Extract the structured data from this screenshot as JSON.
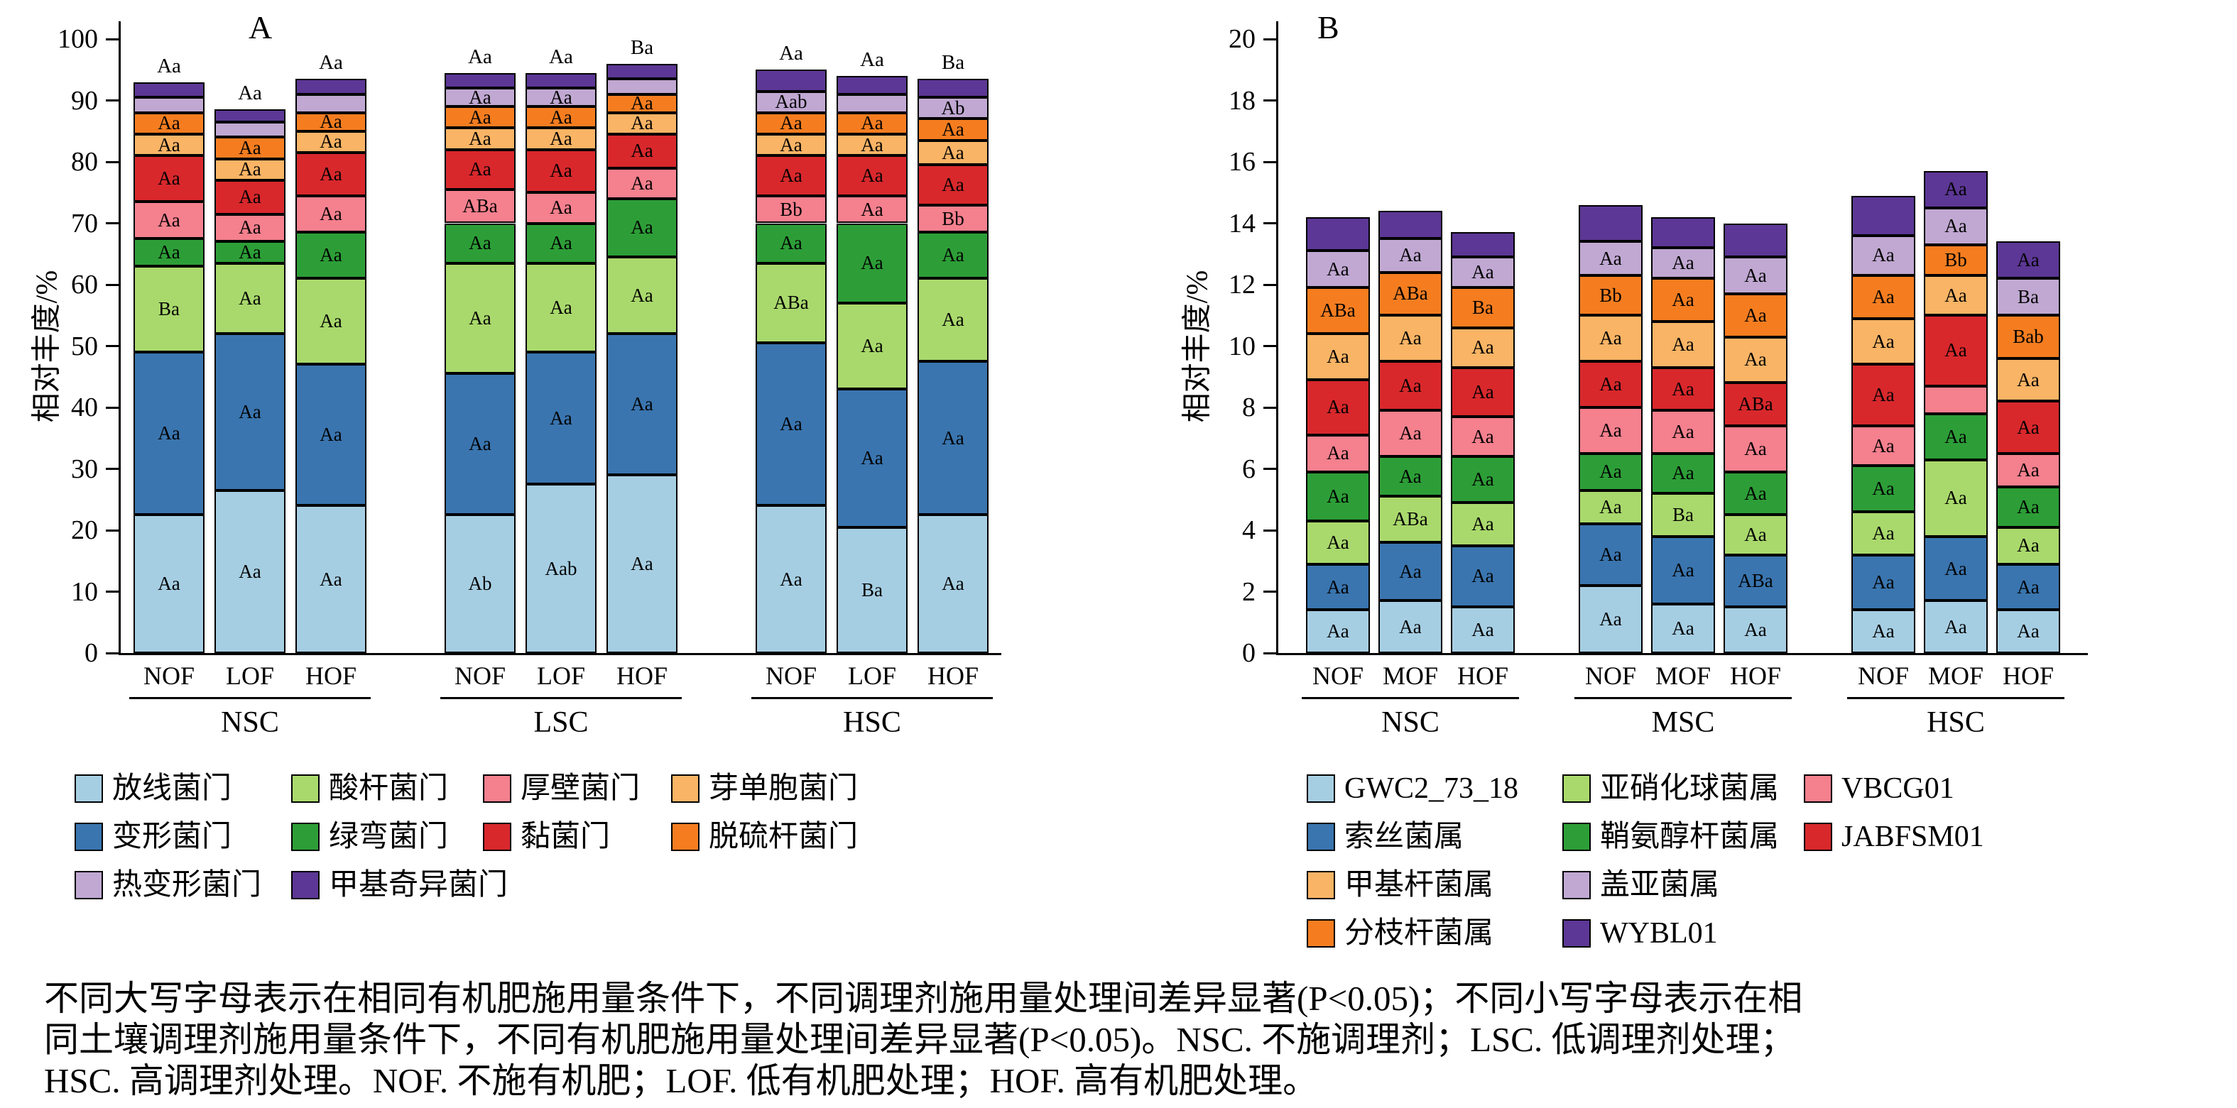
{
  "caption": {
    "lines": [
      "不同大写字母表示在相同有机肥施用量条件下，不同调理剂施用量处理间差异显著(P<0.05)；不同小写字母表示在相",
      "同土壤调理剂施用量条件下，不同有机肥施用量处理间差异显著(P<0.05)。NSC. 不施调理剂；LSC. 低调理剂处理；",
      "HSC. 高调理剂处理。NOF. 不施有机肥；LOF. 低有机肥处理；HOF. 高有机肥处理。"
    ]
  },
  "chart_data": [
    {
      "type": "bar",
      "stacked": true,
      "panel": "A",
      "title": "",
      "xlabel": "",
      "ylabel": "相对丰度/%",
      "ylim": [
        0,
        100
      ],
      "ytick_step": 10,
      "grid": false,
      "legend_position": "bottom",
      "series": [
        {
          "name": "放线菌门",
          "color": "#a6cee3"
        },
        {
          "name": "变形菌门",
          "color": "#3a75af"
        },
        {
          "name": "酸杆菌门",
          "color": "#a9d96c"
        },
        {
          "name": "绿弯菌门",
          "color": "#2d9e37"
        },
        {
          "name": "厚壁菌门",
          "color": "#f5808e"
        },
        {
          "name": "黏菌门",
          "color": "#d8282c"
        },
        {
          "name": "芽单胞菌门",
          "color": "#f9b465"
        },
        {
          "name": "脱硫杆菌门",
          "color": "#f57d20"
        },
        {
          "name": "热变形菌门",
          "color": "#c0a8d2"
        },
        {
          "name": "甲基奇异菌门",
          "color": "#5c3795"
        }
      ],
      "legend_rows": [
        [
          "放线菌门",
          "酸杆菌门",
          "厚壁菌门",
          "芽单胞菌门"
        ],
        [
          "变形菌门",
          "绿弯菌门",
          "黏菌门",
          "脱硫杆菌门"
        ],
        [
          "热变形菌门",
          "甲基奇异菌门"
        ]
      ],
      "groups": [
        {
          "label": "NSC",
          "bars": [
            {
              "tick": "NOF",
              "values": [
                22.5,
                26.5,
                14.0,
                4.5,
                6.0,
                7.5,
                3.5,
                3.5,
                2.5,
                2.5
              ],
              "seg_labels": [
                "Aa",
                "Aa",
                "Ba",
                "Aa",
                "Aa",
                "Aa",
                "Aa",
                "Aa",
                "",
                ""
              ],
              "top_label": "Aa"
            },
            {
              "tick": "LOF",
              "values": [
                26.5,
                25.5,
                11.5,
                3.5,
                4.5,
                5.5,
                3.5,
                3.5,
                2.5,
                2.0
              ],
              "seg_labels": [
                "Aa",
                "Aa",
                "Aa",
                "Aa",
                "Aa",
                "Aa",
                "Aa",
                "Aa",
                "",
                ""
              ],
              "top_label": "Aa"
            },
            {
              "tick": "HOF",
              "values": [
                24.0,
                23.0,
                14.0,
                7.5,
                6.0,
                7.0,
                3.5,
                3.0,
                3.0,
                2.5
              ],
              "seg_labels": [
                "Aa",
                "Aa",
                "Aa",
                "Aa",
                "Aa",
                "Aa",
                "Aa",
                "Aa",
                "",
                ""
              ],
              "top_label": "Aa"
            }
          ]
        },
        {
          "label": "LSC",
          "bars": [
            {
              "tick": "NOF",
              "values": [
                22.5,
                23.0,
                18.0,
                6.5,
                5.5,
                6.5,
                3.5,
                3.5,
                3.0,
                2.5
              ],
              "seg_labels": [
                "Ab",
                "Aa",
                "Aa",
                "Aa",
                "ABa",
                "Aa",
                "Aa",
                "Aa",
                "Aa",
                ""
              ],
              "top_label": "Aa"
            },
            {
              "tick": "LOF",
              "values": [
                27.5,
                21.5,
                14.5,
                6.5,
                5.0,
                7.0,
                3.5,
                3.5,
                3.0,
                2.5
              ],
              "seg_labels": [
                "Aab",
                "Aa",
                "Aa",
                "Aa",
                "Aa",
                "Aa",
                "Aa",
                "Aa",
                "Aa",
                ""
              ],
              "top_label": "Aa"
            },
            {
              "tick": "HOF",
              "values": [
                29.0,
                23.0,
                12.5,
                9.5,
                5.0,
                5.5,
                3.5,
                3.0,
                2.5,
                2.5
              ],
              "seg_labels": [
                "Aa",
                "Aa",
                "Aa",
                "Aa",
                "Aa",
                "Aa",
                "Aa",
                "Aa",
                "",
                ""
              ],
              "top_label": "Ba"
            }
          ]
        },
        {
          "label": "HSC",
          "bars": [
            {
              "tick": "NOF",
              "values": [
                24.0,
                26.5,
                13.0,
                6.5,
                4.5,
                6.5,
                3.5,
                3.5,
                3.5,
                3.5
              ],
              "seg_labels": [
                "Aa",
                "Aa",
                "ABa",
                "Aa",
                "Bb",
                "Aa",
                "Aa",
                "Aa",
                "Aab",
                ""
              ],
              "top_label": "Aa"
            },
            {
              "tick": "LOF",
              "values": [
                20.5,
                22.5,
                14.0,
                13.0,
                4.5,
                6.5,
                3.5,
                3.5,
                3.0,
                3.0
              ],
              "seg_labels": [
                "Ba",
                "Aa",
                "Aa",
                "Aa",
                "Aa",
                "Aa",
                "Aa",
                "Aa",
                "",
                ""
              ],
              "top_label": "Aa"
            },
            {
              "tick": "HOF",
              "values": [
                22.5,
                25.0,
                13.5,
                7.5,
                4.5,
                6.5,
                4.0,
                3.5,
                3.5,
                3.0
              ],
              "seg_labels": [
                "Aa",
                "Aa",
                "Aa",
                "Aa",
                "Bb",
                "Aa",
                "Aa",
                "Aa",
                "Ab",
                ""
              ],
              "top_label": "Ba"
            }
          ]
        }
      ]
    },
    {
      "type": "bar",
      "stacked": true,
      "panel": "B",
      "title": "",
      "xlabel": "",
      "ylabel": "相对丰度/%",
      "ylim": [
        0,
        20
      ],
      "ytick_step": 2,
      "grid": false,
      "legend_position": "bottom",
      "series": [
        {
          "name": "GWC2_73_18",
          "color": "#a6cee3"
        },
        {
          "name": "索丝菌属",
          "color": "#3a75af"
        },
        {
          "name": "亚硝化球菌属",
          "color": "#a9d96c"
        },
        {
          "name": "鞘氨醇杆菌属",
          "color": "#2d9e37"
        },
        {
          "name": "VBCG01",
          "color": "#f5808e"
        },
        {
          "name": "JABFSM01",
          "color": "#d8282c"
        },
        {
          "name": "甲基杆菌属",
          "color": "#f9b465"
        },
        {
          "name": "分枝杆菌属",
          "color": "#f57d20"
        },
        {
          "name": "盖亚菌属",
          "color": "#c0a8d2"
        },
        {
          "name": "WYBL01",
          "color": "#5c3795"
        }
      ],
      "legend_rows": [
        [
          "GWC2_73_18",
          "亚硝化球菌属",
          "VBCG01"
        ],
        [
          "索丝菌属",
          "鞘氨醇杆菌属",
          "JABFSM01"
        ],
        [
          "甲基杆菌属",
          "盖亚菌属"
        ],
        [
          "分枝杆菌属",
          "WYBL01"
        ]
      ],
      "groups": [
        {
          "label": "NSC",
          "bars": [
            {
              "tick": "NOF",
              "values": [
                1.4,
                1.5,
                1.4,
                1.6,
                1.2,
                1.8,
                1.5,
                1.5,
                1.2,
                1.1
              ],
              "seg_labels": [
                "Aa",
                "Aa",
                "Aa",
                "Aa",
                "Aa",
                "Aa",
                "Aa",
                "ABa",
                "Aa",
                ""
              ],
              "top_label": ""
            },
            {
              "tick": "MOF",
              "values": [
                1.7,
                1.9,
                1.5,
                1.3,
                1.5,
                1.6,
                1.5,
                1.4,
                1.1,
                0.9
              ],
              "seg_labels": [
                "Aa",
                "Aa",
                "ABa",
                "Aa",
                "Aa",
                "Aa",
                "Aa",
                "ABa",
                "Aa",
                ""
              ],
              "top_label": ""
            },
            {
              "tick": "HOF",
              "values": [
                1.5,
                2.0,
                1.4,
                1.5,
                1.3,
                1.6,
                1.3,
                1.3,
                1.0,
                0.8
              ],
              "seg_labels": [
                "Aa",
                "Aa",
                "Aa",
                "Aa",
                "Aa",
                "Aa",
                "Aa",
                "Ba",
                "Aa",
                ""
              ],
              "top_label": ""
            }
          ]
        },
        {
          "label": "MSC",
          "bars": [
            {
              "tick": "NOF",
              "values": [
                2.2,
                2.0,
                1.1,
                1.2,
                1.5,
                1.5,
                1.5,
                1.3,
                1.1,
                1.2
              ],
              "seg_labels": [
                "Aa",
                "Aa",
                "Aa",
                "Aa",
                "Aa",
                "Aa",
                "Aa",
                "Bb",
                "Aa",
                ""
              ],
              "top_label": ""
            },
            {
              "tick": "MOF",
              "values": [
                1.6,
                2.2,
                1.4,
                1.3,
                1.4,
                1.4,
                1.5,
                1.4,
                1.0,
                1.0
              ],
              "seg_labels": [
                "Aa",
                "Aa",
                "Ba",
                "Aa",
                "Aa",
                "Aa",
                "Aa",
                "Aa",
                "Aa",
                ""
              ],
              "top_label": ""
            },
            {
              "tick": "HOF",
              "values": [
                1.5,
                1.7,
                1.3,
                1.4,
                1.5,
                1.4,
                1.5,
                1.4,
                1.2,
                1.1
              ],
              "seg_labels": [
                "Aa",
                "ABa",
                "Aa",
                "Aa",
                "Aa",
                "ABa",
                "Aa",
                "Aa",
                "Aa",
                ""
              ],
              "top_label": ""
            }
          ]
        },
        {
          "label": "HSC",
          "bars": [
            {
              "tick": "NOF",
              "values": [
                1.4,
                1.8,
                1.4,
                1.5,
                1.3,
                2.0,
                1.5,
                1.4,
                1.3,
                1.3
              ],
              "seg_labels": [
                "Aa",
                "Aa",
                "Aa",
                "Aa",
                "Aa",
                "Aa",
                "Aa",
                "Aa",
                "Aa",
                ""
              ],
              "top_label": ""
            },
            {
              "tick": "MOF",
              "values": [
                1.7,
                2.1,
                2.5,
                1.5,
                0.9,
                2.3,
                1.3,
                1.0,
                1.2,
                1.2
              ],
              "seg_labels": [
                "Aa",
                "Aa",
                "Aa",
                "Aa",
                "",
                "Aa",
                "Aa",
                "Bb",
                "Aa",
                "Aa"
              ],
              "top_label": ""
            },
            {
              "tick": "HOF",
              "values": [
                1.4,
                1.5,
                1.2,
                1.3,
                1.1,
                1.7,
                1.4,
                1.4,
                1.2,
                1.2
              ],
              "seg_labels": [
                "Aa",
                "Aa",
                "Aa",
                "Aa",
                "Aa",
                "Aa",
                "Aa",
                "Bab",
                "Ba",
                "Aa"
              ],
              "top_label": ""
            }
          ]
        }
      ]
    }
  ]
}
